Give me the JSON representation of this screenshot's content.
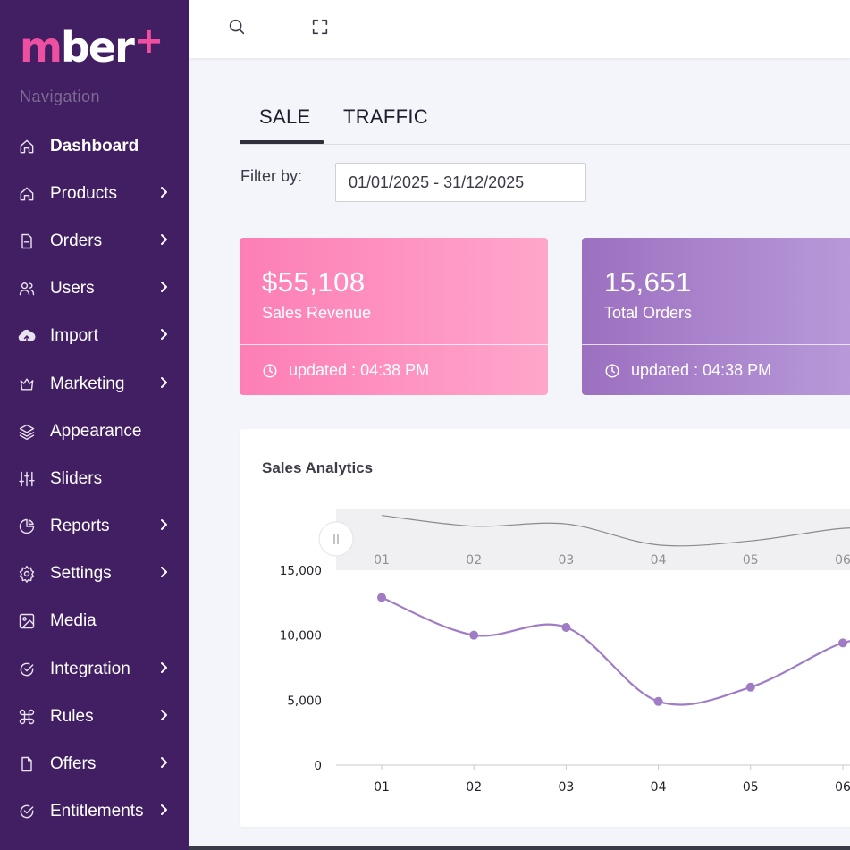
{
  "brand": {
    "logo_m": "m",
    "logo_rest": "ber",
    "logo_plus": "+"
  },
  "sidebar": {
    "heading": "Navigation",
    "items": [
      {
        "label": "Dashboard",
        "icon": "home-icon",
        "has_chevron": false,
        "active": true
      },
      {
        "label": "Products",
        "icon": "home-icon",
        "has_chevron": true
      },
      {
        "label": "Orders",
        "icon": "file-icon",
        "has_chevron": true
      },
      {
        "label": "Users",
        "icon": "users-icon",
        "has_chevron": true
      },
      {
        "label": "Import",
        "icon": "cloud-upload-icon",
        "has_chevron": true
      },
      {
        "label": "Marketing",
        "icon": "crown-icon",
        "has_chevron": true
      },
      {
        "label": "Appearance",
        "icon": "layers-icon",
        "has_chevron": false
      },
      {
        "label": "Sliders",
        "icon": "sliders-icon",
        "has_chevron": false
      },
      {
        "label": "Reports",
        "icon": "pie-chart-icon",
        "has_chevron": true
      },
      {
        "label": "Settings",
        "icon": "gear-icon",
        "has_chevron": true
      },
      {
        "label": "Media",
        "icon": "image-icon",
        "has_chevron": false
      },
      {
        "label": "Integration",
        "icon": "check-circle-icon",
        "has_chevron": true
      },
      {
        "label": "Rules",
        "icon": "command-icon",
        "has_chevron": true
      },
      {
        "label": "Offers",
        "icon": "document-icon",
        "has_chevron": true
      },
      {
        "label": "Entitlements",
        "icon": "check-circle-icon",
        "has_chevron": true
      }
    ]
  },
  "topbar": {
    "search_icon": "search-icon",
    "fullscreen_icon": "fullscreen-icon"
  },
  "tabs": [
    {
      "label": "SALE",
      "active": true
    },
    {
      "label": "TRAFFIC",
      "active": false
    }
  ],
  "filter": {
    "label": "Filter by:",
    "value": "01/01/2025 - 31/12/2025"
  },
  "cards": [
    {
      "value": "$55,108",
      "label": "Sales Revenue",
      "updated": "updated : 04:38 PM",
      "color": "#fd7eb4"
    },
    {
      "value": "15,651",
      "label": "Total Orders",
      "updated": "updated : 04:38 PM",
      "color": "#9c70c0"
    }
  ],
  "panel": {
    "title": "Sales Analytics"
  },
  "chart_data": {
    "type": "line",
    "title": "Sales Analytics",
    "categories": [
      "01",
      "02",
      "03",
      "04",
      "05",
      "06"
    ],
    "series": [
      {
        "values": [
          12900,
          10000,
          10600,
          4900,
          6000,
          9400
        ]
      }
    ],
    "yticks": [
      "15,000",
      "10,000",
      "5,000",
      "0"
    ],
    "ylim": [
      0,
      15000
    ],
    "line_color": "#a07cc5",
    "navigator": true,
    "grid": false
  }
}
